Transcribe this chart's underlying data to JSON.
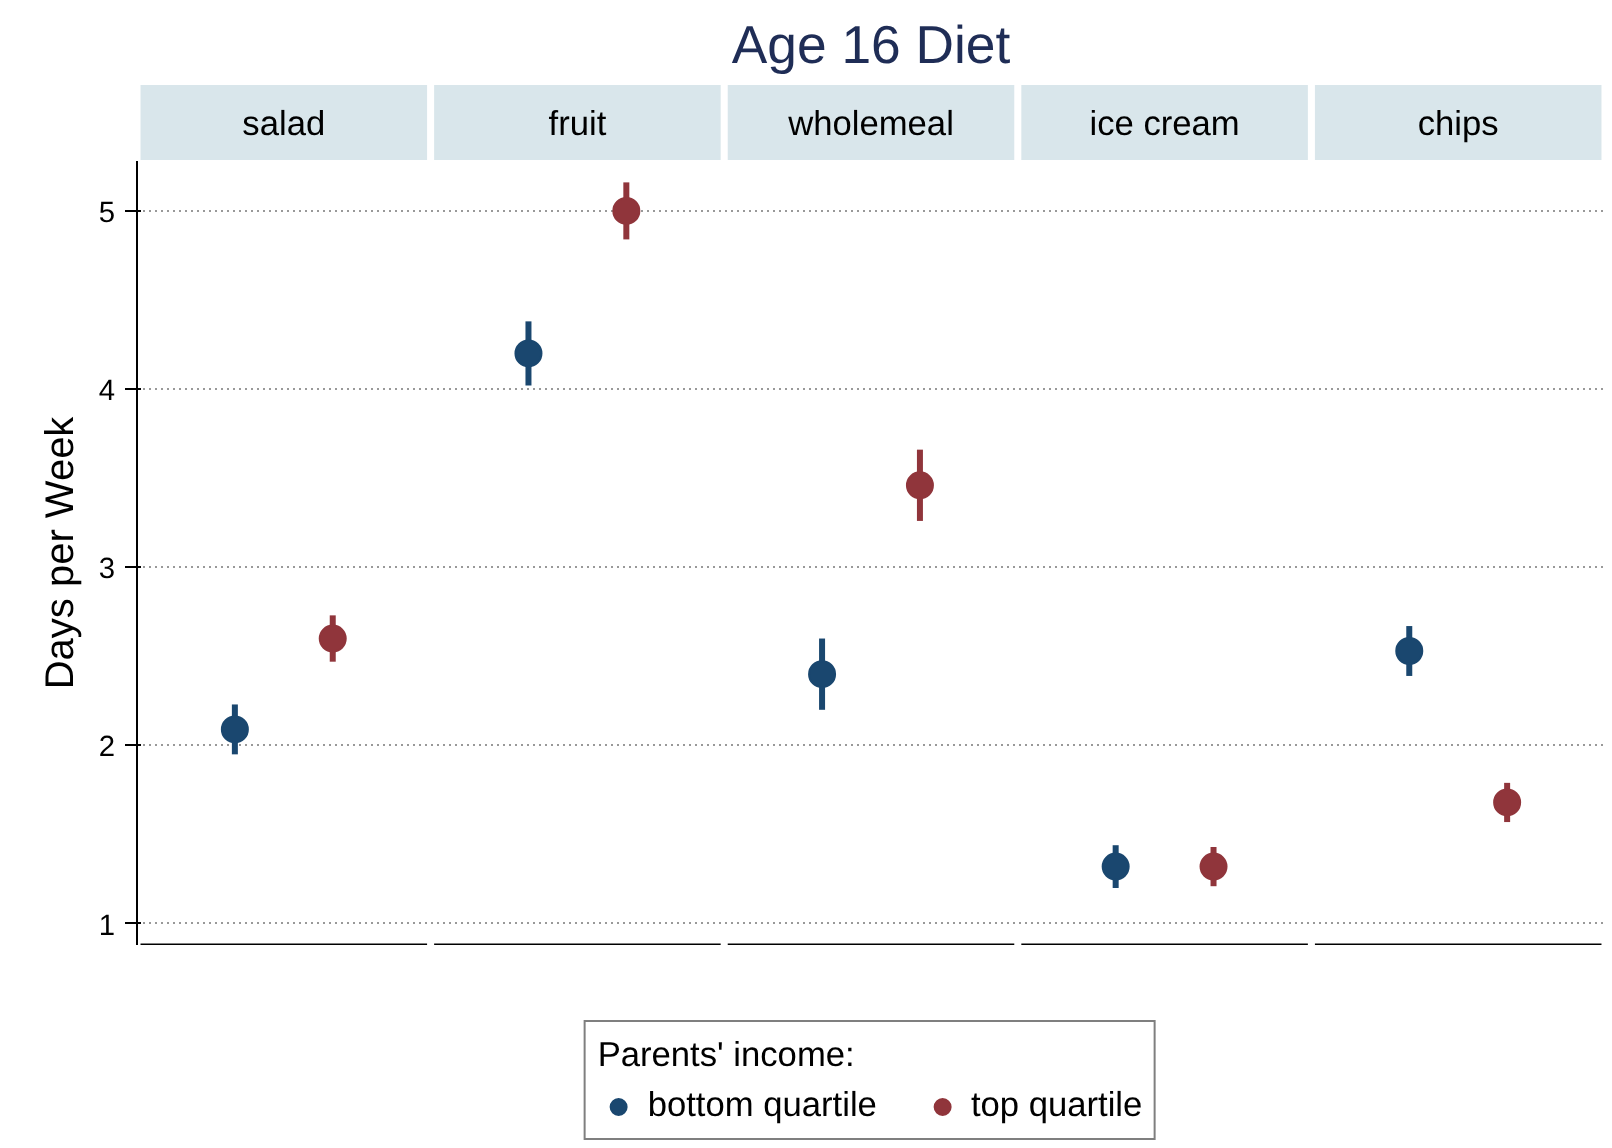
{
  "chart_data": {
    "type": "scatter",
    "title": "Age 16 Diet",
    "ylabel": "Days per Week",
    "categories": [
      "salad",
      "fruit",
      "wholemeal",
      "ice cream",
      "chips"
    ],
    "series": [
      {
        "name": "bottom quartile",
        "color": "#1a476f",
        "values": [
          2.09,
          4.2,
          2.4,
          1.32,
          2.53
        ],
        "errors": [
          0.14,
          0.18,
          0.2,
          0.12,
          0.14
        ]
      },
      {
        "name": "top quartile",
        "color": "#90353b",
        "values": [
          2.6,
          5.0,
          3.46,
          1.32,
          1.68
        ],
        "errors": [
          0.13,
          0.16,
          0.2,
          0.11,
          0.11
        ]
      }
    ],
    "ylim": [
      0.88,
      5.28
    ],
    "yticks": [
      1,
      2,
      3,
      4,
      5
    ],
    "grid": "y",
    "legend": "bottom",
    "legend_title": "Parents' income:",
    "tick_labels": "y",
    "marker": "circle"
  }
}
